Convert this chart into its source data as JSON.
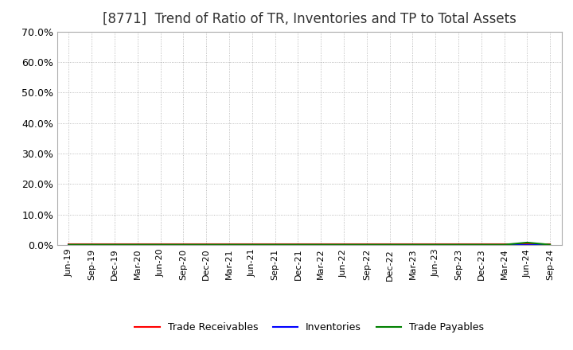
{
  "title": "[8771]  Trend of Ratio of TR, Inventories and TP to Total Assets",
  "title_fontsize": 12,
  "background_color": "#FFFFFF",
  "plot_background_color": "#FFFFFF",
  "grid_color": "#AAAAAA",
  "x_labels": [
    "Jun-19",
    "Sep-19",
    "Dec-19",
    "Mar-20",
    "Jun-20",
    "Sep-20",
    "Dec-20",
    "Mar-21",
    "Jun-21",
    "Sep-21",
    "Dec-21",
    "Mar-22",
    "Jun-22",
    "Sep-22",
    "Dec-22",
    "Mar-23",
    "Jun-23",
    "Sep-23",
    "Dec-23",
    "Mar-24",
    "Jun-24",
    "Sep-24"
  ],
  "trade_receivables": [
    0.003,
    0.003,
    0.003,
    0.003,
    0.003,
    0.003,
    0.003,
    0.003,
    0.003,
    0.003,
    0.003,
    0.003,
    0.003,
    0.003,
    0.003,
    0.003,
    0.003,
    0.003,
    0.003,
    0.003,
    0.003,
    0.003
  ],
  "inventories": [
    0.001,
    0.001,
    0.001,
    0.001,
    0.001,
    0.001,
    0.001,
    0.001,
    0.001,
    0.001,
    0.001,
    0.001,
    0.001,
    0.001,
    0.001,
    0.001,
    0.001,
    0.001,
    0.001,
    0.001,
    0.001,
    0.001
  ],
  "trade_payables": [
    0.001,
    0.001,
    0.001,
    0.001,
    0.001,
    0.001,
    0.001,
    0.001,
    0.001,
    0.001,
    0.001,
    0.001,
    0.001,
    0.001,
    0.001,
    0.001,
    0.001,
    0.001,
    0.001,
    0.001,
    0.008,
    0.001
  ],
  "line_colors": {
    "trade_receivables": "#FF0000",
    "inventories": "#0000FF",
    "trade_payables": "#008000"
  },
  "legend_labels": {
    "trade_receivables": "Trade Receivables",
    "inventories": "Inventories",
    "trade_payables": "Trade Payables"
  },
  "ylim": [
    0.0,
    0.7
  ],
  "yticks": [
    0.0,
    0.1,
    0.2,
    0.3,
    0.4,
    0.5,
    0.6,
    0.7
  ],
  "yticklabels": [
    "0.0%",
    "10.0%",
    "20.0%",
    "30.0%",
    "40.0%",
    "50.0%",
    "60.0%",
    "70.0%"
  ]
}
